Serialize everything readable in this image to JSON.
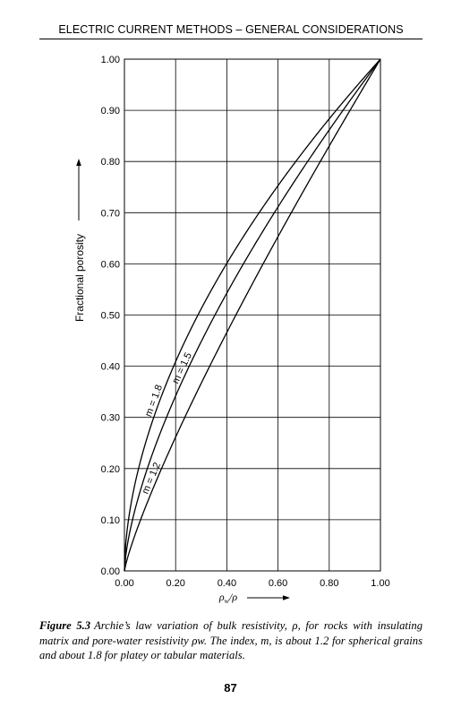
{
  "running_head": "ELECTRIC CURRENT METHODS – GENERAL CONSIDERATIONS",
  "chart_data": {
    "type": "line",
    "title": "",
    "xlabel": "ρw/ρ",
    "xlabel_parts": {
      "main": "ρ",
      "sub": "w",
      "tail": "/ρ"
    },
    "ylabel": "Fractional porosity",
    "xlim": [
      0,
      1
    ],
    "ylim": [
      0,
      1
    ],
    "x_ticks": [
      "0.00",
      "0.20",
      "0.40",
      "0.60",
      "0.80",
      "1.00"
    ],
    "y_ticks": [
      "0.00",
      "0.10",
      "0.20",
      "0.30",
      "0.40",
      "0.50",
      "0.60",
      "0.70",
      "0.80",
      "0.90",
      "1.00"
    ],
    "grid": true,
    "series": [
      {
        "name": "m = 1.2",
        "exponent": 1.2,
        "label_at": 0.125,
        "x": [
          0,
          0.1,
          0.2,
          0.3,
          0.4,
          0.5,
          0.6,
          0.7,
          0.8,
          0.9,
          1.0
        ],
        "y": [
          0,
          0.147,
          0.262,
          0.367,
          0.466,
          0.561,
          0.653,
          0.743,
          0.83,
          0.916,
          1.0
        ]
      },
      {
        "name": "m = 1.5",
        "exponent": 1.5,
        "label_at": 0.245,
        "x": [
          0,
          0.1,
          0.2,
          0.3,
          0.4,
          0.5,
          0.6,
          0.7,
          0.8,
          0.9,
          1.0
        ],
        "y": [
          0,
          0.215,
          0.342,
          0.448,
          0.543,
          0.63,
          0.711,
          0.788,
          0.862,
          0.932,
          1.0
        ]
      },
      {
        "name": "m = 1.8",
        "exponent": 1.8,
        "label_at": 0.135,
        "x": [
          0,
          0.1,
          0.2,
          0.3,
          0.4,
          0.5,
          0.6,
          0.7,
          0.8,
          0.9,
          1.0
        ],
        "y": [
          0,
          0.278,
          0.409,
          0.512,
          0.601,
          0.681,
          0.753,
          0.82,
          0.884,
          0.943,
          1.0
        ]
      }
    ]
  },
  "caption": {
    "label": "Figure 5.3",
    "text": "Archie’s law variation of bulk resistivity, ρ, for rocks with insulating matrix and pore-water resistivity ρw. The index, m, is about 1.2 for spherical grains and about 1.8 for platey or tabular materials."
  },
  "page_number": "87"
}
